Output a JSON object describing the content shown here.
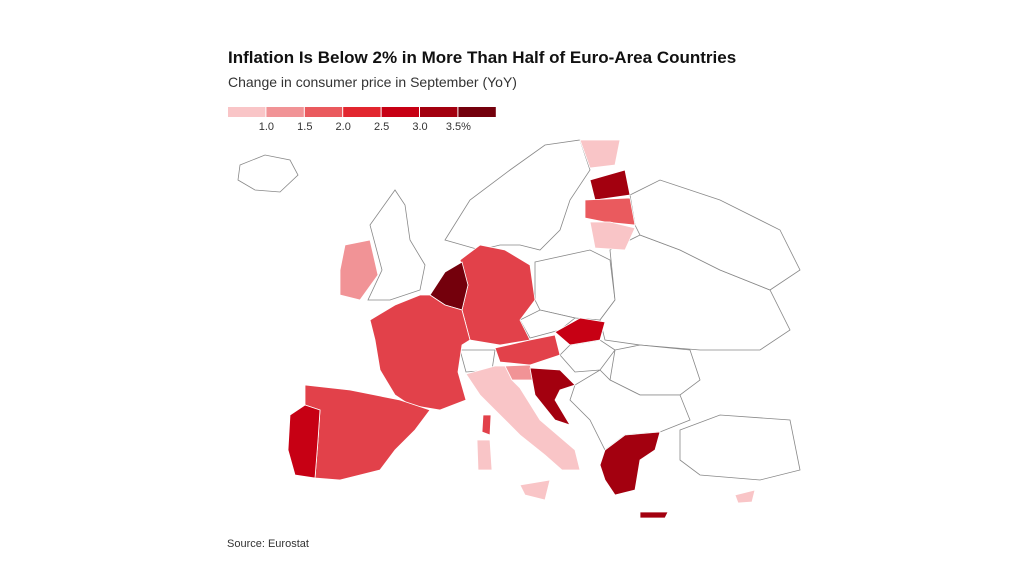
{
  "header": {
    "title": "Inflation Is Below 2% in More Than Half of Euro-Area Countries",
    "subtitle": "Change in consumer price in September (YoY)"
  },
  "legend": {
    "colors": [
      "#f9c5c7",
      "#f19396",
      "#ea5a5e",
      "#e2262f",
      "#c70014",
      "#a3000f",
      "#74000c"
    ],
    "labels": [
      "1.0",
      "1.5",
      "2.0",
      "2.5",
      "3.0",
      "3.5%"
    ]
  },
  "source": "Source: Eurostat"
}
